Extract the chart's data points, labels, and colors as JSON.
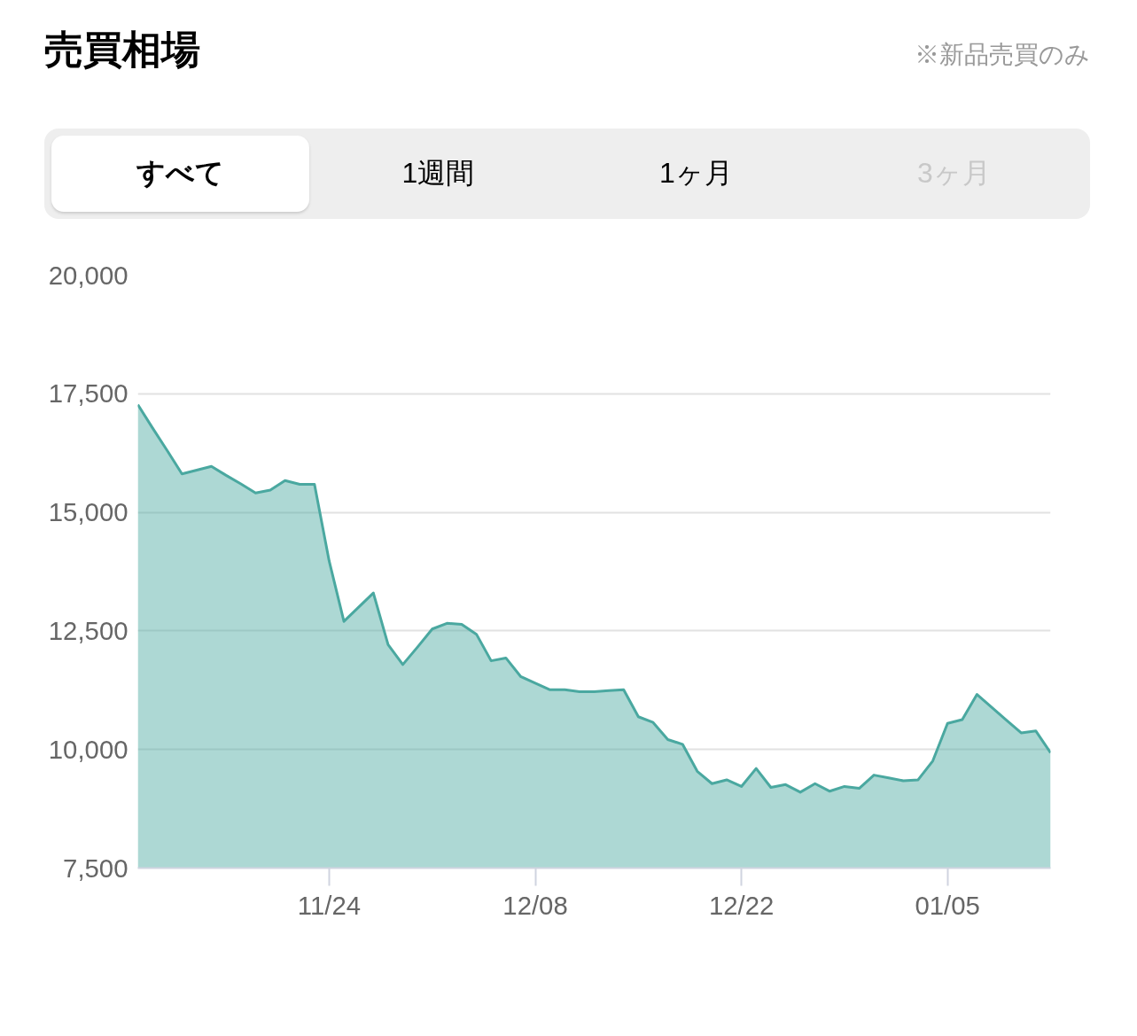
{
  "chart_data": {
    "type": "area",
    "title": "売買相場",
    "annotations": [
      "※新品売買のみ",
      "すべて",
      "1週間",
      "1ヶ月",
      "3ヶ月"
    ],
    "categories": [
      null,
      null,
      null,
      null,
      null,
      null,
      null,
      null,
      null,
      null,
      null,
      null,
      null,
      "11/24",
      null,
      null,
      null,
      null,
      null,
      null,
      null,
      null,
      null,
      null,
      null,
      null,
      null,
      "12/08",
      null,
      null,
      null,
      null,
      null,
      null,
      null,
      null,
      null,
      null,
      null,
      null,
      null,
      "12/22",
      null,
      null,
      null,
      null,
      null,
      null,
      null,
      null,
      null,
      null,
      null,
      null,
      null,
      "01/05",
      null,
      null,
      null,
      null,
      null,
      null,
      null
    ],
    "series": [
      {
        "color": "#4aa8a0",
        "values": [
          17270,
          16780,
          16300,
          15810,
          15890,
          15970,
          15780,
          15600,
          15410,
          15470,
          15670,
          15590,
          15590,
          13970,
          12700,
          13000,
          13300,
          12210,
          11790,
          12160,
          12540,
          12660,
          12640,
          12430,
          11870,
          11930,
          11540,
          11400,
          11260,
          11260,
          11220,
          11220,
          11240,
          11260,
          10690,
          10570,
          10210,
          10110,
          9540,
          9280,
          9360,
          9220,
          9600,
          9200,
          9260,
          9100,
          9280,
          9120,
          9220,
          9180,
          9460,
          9400,
          9340,
          9360,
          9760,
          10550,
          10630,
          11160,
          10890,
          10620,
          10350,
          10390,
          9930
        ]
      }
    ],
    "ylim": [
      7500,
      20000
    ],
    "yticks": [
      {
        "value": 7500,
        "label": "7,500"
      },
      {
        "value": 10000,
        "label": "10,000"
      },
      {
        "value": 12500,
        "label": "12,500"
      },
      {
        "value": 15000,
        "label": "15,000"
      },
      {
        "value": 17500,
        "label": "17,500"
      },
      {
        "value": 20000,
        "label": "20,000"
      }
    ],
    "grid": "y"
  }
}
